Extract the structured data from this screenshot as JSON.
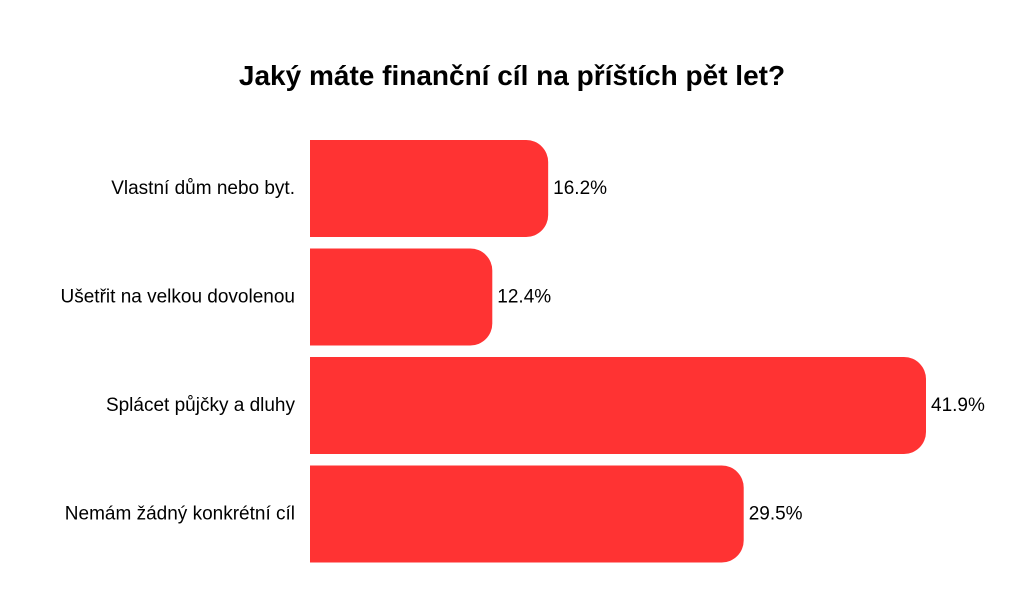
{
  "chart_data": {
    "type": "bar",
    "orientation": "horizontal",
    "title": "Jaký máte finanční cíl na příštích pět let?",
    "categories": [
      "Vlastní dům nebo byt.",
      "Ušetřit na velkou dovolenou",
      "Splácet půjčky a dluhy",
      "Nemám žádný konkrétní cíl"
    ],
    "values": [
      16.2,
      12.4,
      41.9,
      29.5
    ],
    "value_labels": [
      "16.2%",
      "12.4%",
      "41.9%",
      "29.5%"
    ],
    "xlim": [
      0,
      41.9
    ],
    "grid": false,
    "legend": "none",
    "bar_color": "#ff3333"
  }
}
